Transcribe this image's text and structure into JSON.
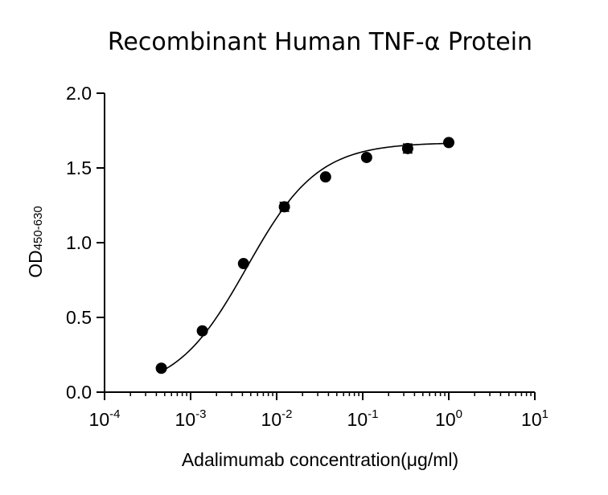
{
  "chart_data": {
    "type": "scatter",
    "title": "Recombinant Human TNF-α Protein",
    "xlabel": "Adalimumab concentration(μg/ml)",
    "ylabel": "OD",
    "ylabel_subscript": "450-630",
    "x_scale": "log10",
    "xlim": [
      0.0001,
      10
    ],
    "ylim": [
      0,
      2.0
    ],
    "x_ticks": [
      {
        "base": "10",
        "exp": "-4",
        "value": 0.0001
      },
      {
        "base": "10",
        "exp": "-3",
        "value": 0.001
      },
      {
        "base": "10",
        "exp": "-2",
        "value": 0.01
      },
      {
        "base": "10",
        "exp": "-1",
        "value": 0.1
      },
      {
        "base": "10",
        "exp": "0",
        "value": 1
      },
      {
        "base": "10",
        "exp": "1",
        "value": 10
      }
    ],
    "y_ticks": [
      "0.0",
      "0.5",
      "1.0",
      "1.5",
      "2.0"
    ],
    "grid": false,
    "series": [
      {
        "x": [
          0.000457,
          0.00137,
          0.00412,
          0.0123,
          0.037,
          0.111,
          0.333,
          1.0
        ],
        "y": [
          0.16,
          0.41,
          0.86,
          1.24,
          1.44,
          1.57,
          1.63,
          1.67
        ],
        "error": [
          0.01,
          0.01,
          0.01,
          0.03,
          0.01,
          0.01,
          0.03,
          0.01
        ]
      }
    ],
    "fit_curve": {
      "model": "4PL",
      "bottom": 0.0,
      "top": 1.67,
      "ec50": 0.0045,
      "hill": 1.05
    }
  }
}
